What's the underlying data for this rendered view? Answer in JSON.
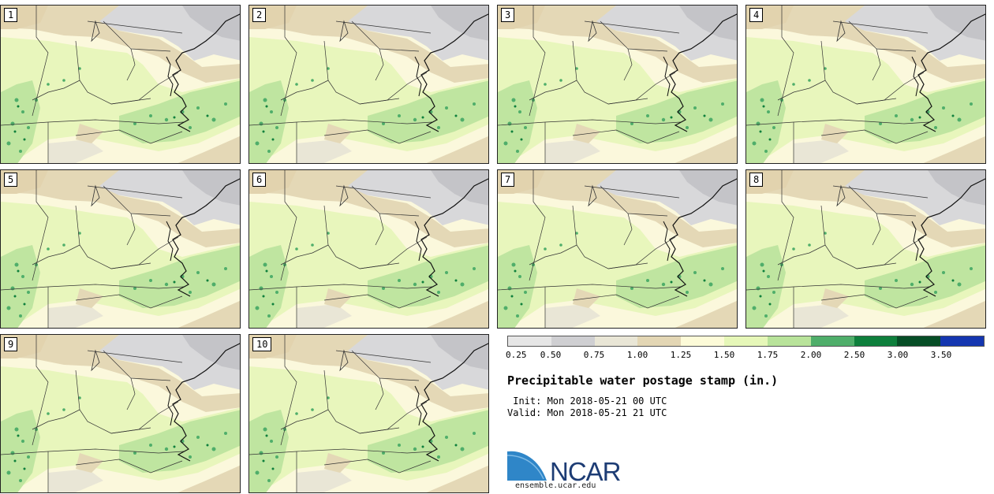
{
  "panels": [
    {
      "label": "1"
    },
    {
      "label": "2"
    },
    {
      "label": "3"
    },
    {
      "label": "4"
    },
    {
      "label": "5"
    },
    {
      "label": "6"
    },
    {
      "label": "7"
    },
    {
      "label": "8"
    },
    {
      "label": "9"
    },
    {
      "label": "10"
    }
  ],
  "legend": {
    "colors": [
      "#e6e6e6",
      "#cfcfd2",
      "#e9e6d6",
      "#e3d6b4",
      "#fdfbd8",
      "#e6f7b8",
      "#b8e39a",
      "#4fae6a",
      "#0e7f3c",
      "#064d26",
      "#1436b0"
    ],
    "ticks": [
      "0.25",
      "0.50",
      "0.75",
      "1.00",
      "1.25",
      "1.50",
      "1.75",
      "2.00",
      "2.50",
      "3.00",
      "3.50"
    ]
  },
  "title": "Precipitable water postage stamp (in.)",
  "init_line": " Init: Mon 2018-05-21 00 UTC",
  "valid_line": "Valid: Mon 2018-05-21 21 UTC",
  "logo": {
    "text": "NCAR",
    "url": "ensemble.ucar.edu"
  }
}
